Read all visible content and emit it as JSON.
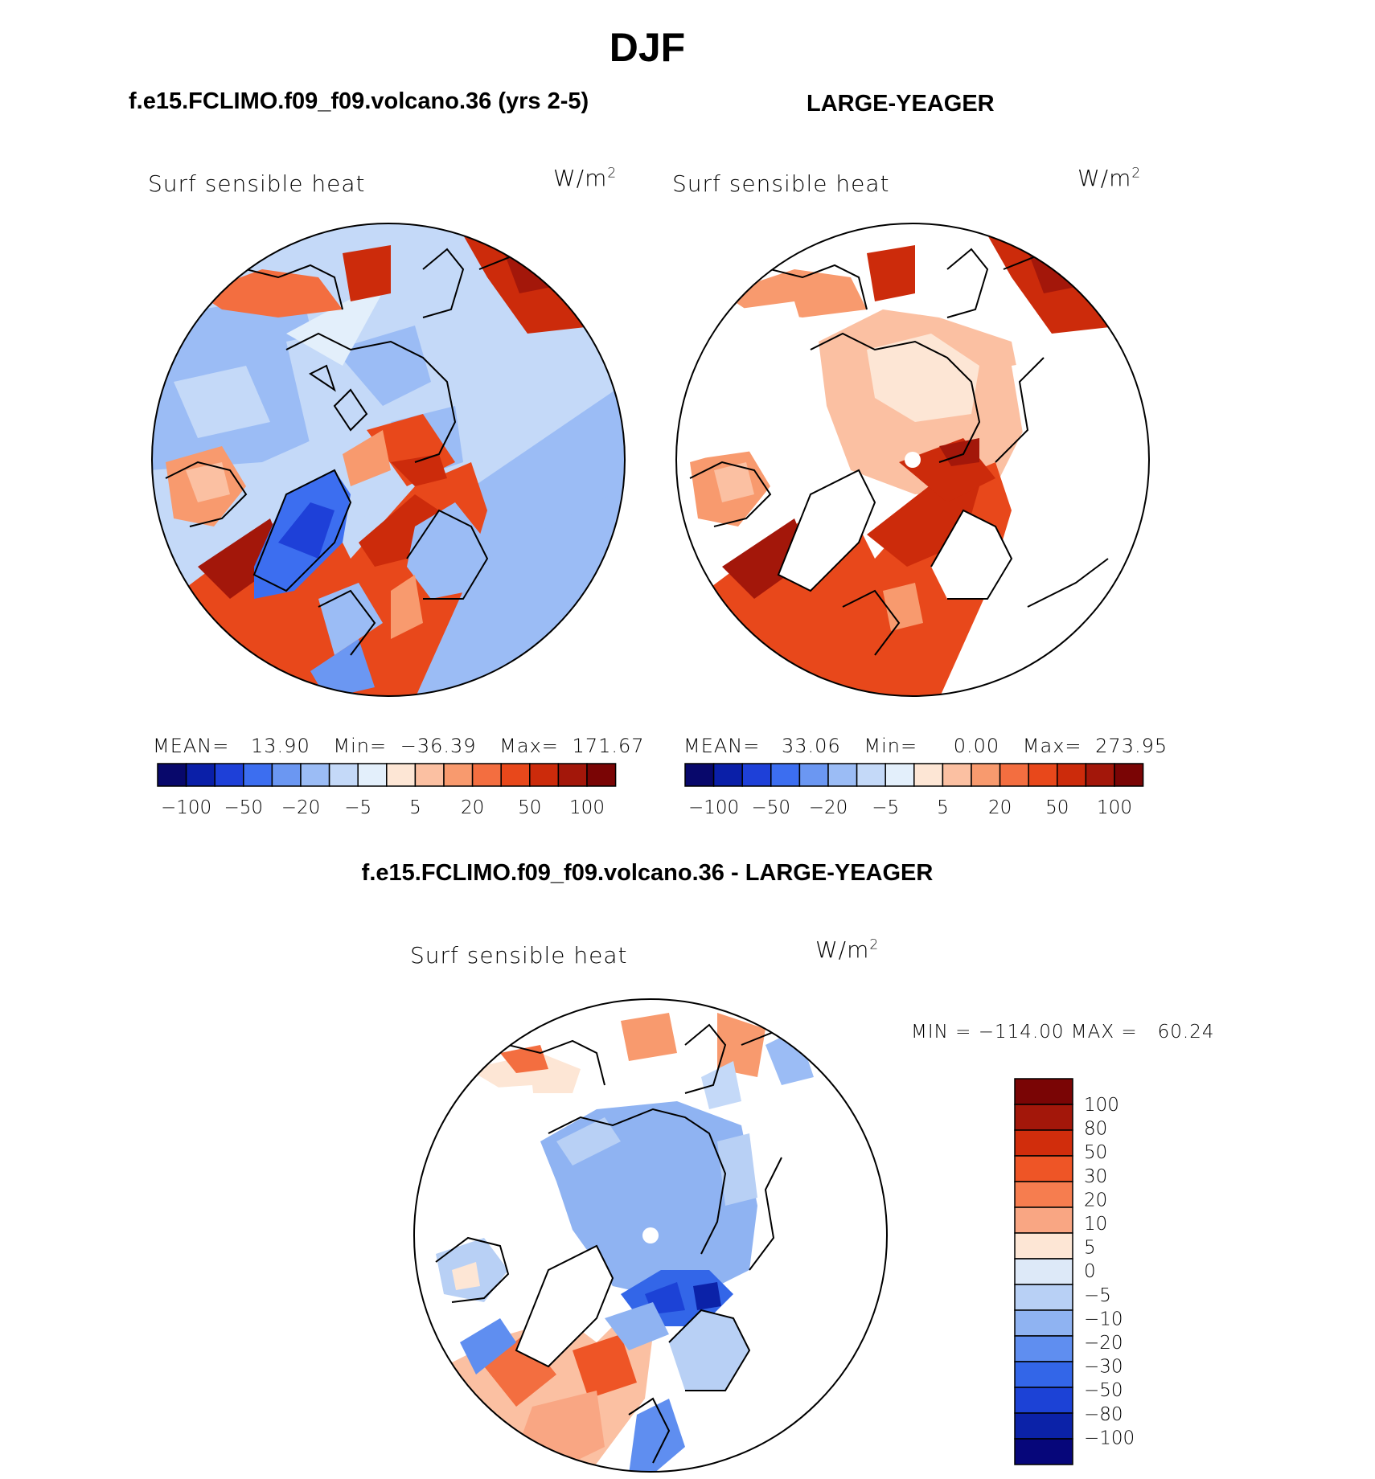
{
  "page": {
    "season": "DJF",
    "left_title": "f.e15.FCLIMO.f09_f09.volcano.36 (yrs 2-5)",
    "right_title": "LARGE-YEAGER",
    "diff_title": "f.e15.FCLIMO.f09_f09.volcano.36 - LARGE-YEAGER"
  },
  "panels": {
    "left": {
      "variable": "Surf sensible heat",
      "units_base": "W/m",
      "units_exp": "2",
      "stats": {
        "mean_label": "MEAN=",
        "mean": "13.90",
        "min_label": "Min=",
        "min": "−36.39",
        "max_label": "Max=",
        "max": "171.67"
      }
    },
    "right": {
      "variable": "Surf sensible heat",
      "units_base": "W/m",
      "units_exp": "2",
      "stats": {
        "mean_label": "MEAN=",
        "mean": "33.06",
        "min_label": "Min=",
        "min": "0.00",
        "max_label": "Max=",
        "max": "273.95"
      }
    },
    "diff": {
      "variable": "Surf sensible heat",
      "units_base": "W/m",
      "units_exp": "2",
      "minmax_text": "MIN = −114.00 MAX =   60.24"
    }
  },
  "colorbar_h": {
    "colors": [
      "#08086b",
      "#0a1fa8",
      "#1e40d8",
      "#3c6ef0",
      "#6b97f2",
      "#9bbcf5",
      "#c4d9f8",
      "#e3effb",
      "#fde6d5",
      "#fbc0a2",
      "#f89a6e",
      "#f36e40",
      "#e8481b",
      "#cc2b0b",
      "#a3170a",
      "#7a0505"
    ],
    "tick_labels": [
      "−100",
      "−50",
      "−20",
      "−5",
      "5",
      "20",
      "50",
      "100"
    ]
  },
  "colorbar_v": {
    "colors": [
      "#7a0505",
      "#a3170a",
      "#d12d0c",
      "#ee5526",
      "#f67d4f",
      "#f9a683",
      "#fde6d5",
      "#dde9f8",
      "#b8d0f5",
      "#8fb3f2",
      "#5f8ef0",
      "#3366e8",
      "#1c42d6",
      "#0b22a8",
      "#06067a"
    ],
    "tick_labels": [
      "100",
      "80",
      "50",
      "30",
      "20",
      "10",
      "5",
      "0",
      "−5",
      "−10",
      "−20",
      "−30",
      "−50",
      "−80",
      "−100"
    ]
  }
}
